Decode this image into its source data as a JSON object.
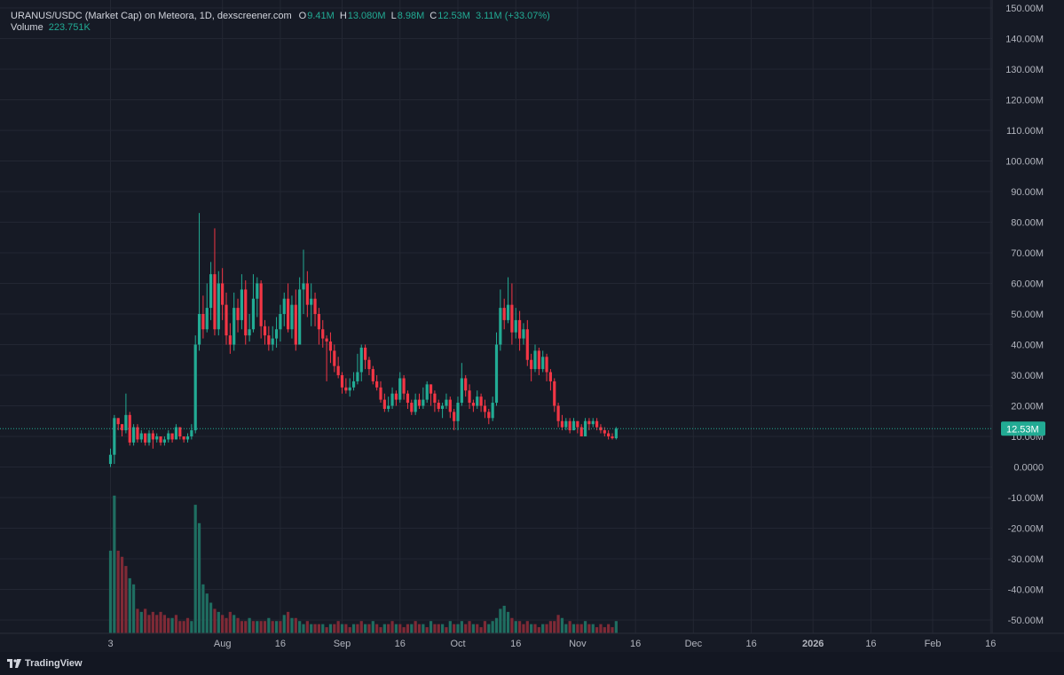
{
  "legend": {
    "title": "URANUS/USDC (Market Cap) on Meteora, 1D, dexscreener.com",
    "o_label": "O",
    "o_value": "9.41M",
    "h_label": "H",
    "h_value": "13.080M",
    "l_label": "L",
    "l_value": "8.98M",
    "c_label": "C",
    "c_value": "12.53M",
    "change": "3.11M (+33.07%)",
    "volume_label": "Volume",
    "volume_value": "223.751K"
  },
  "brand": {
    "name": "TradingView"
  },
  "colors": {
    "background": "#161a25",
    "grid": "#232733",
    "up": "#22ab94",
    "down": "#f23645",
    "up_volume": "#1f6e61",
    "down_volume": "#7f2a36",
    "text": "#b2b5be",
    "price_tag": "#22ab94"
  },
  "chart_data": {
    "type": "candlestick",
    "y_axis": {
      "ticks": [
        "150.00M",
        "140.00M",
        "130.00M",
        "120.00M",
        "110.00M",
        "100.00M",
        "90.00M",
        "80.00M",
        "70.00M",
        "60.00M",
        "50.00M",
        "40.00M",
        "30.00M",
        "20.00M",
        "10.00M",
        "0.0000",
        "-10.00M",
        "-20.00M",
        "-30.00M",
        "-40.00M",
        "-50.00M"
      ],
      "range": [
        -54,
        150
      ],
      "unit": "M"
    },
    "x_axis": {
      "ticks": [
        {
          "label": "3",
          "day": 0
        },
        {
          "label": "Aug",
          "day": 29
        },
        {
          "label": "16",
          "day": 44
        },
        {
          "label": "Sep",
          "day": 60
        },
        {
          "label": "16",
          "day": 75
        },
        {
          "label": "Oct",
          "day": 90
        },
        {
          "label": "16",
          "day": 105
        },
        {
          "label": "Nov",
          "day": 121
        },
        {
          "label": "16",
          "day": 136
        },
        {
          "label": "Dec",
          "day": 151
        },
        {
          "label": "16",
          "day": 166
        },
        {
          "label": "2026",
          "day": 182
        },
        {
          "label": "16",
          "day": 197
        },
        {
          "label": "Feb",
          "day": 213
        },
        {
          "label": "16",
          "day": 228
        }
      ]
    },
    "last_price_label": "12.53M",
    "last_price": 12.53,
    "candles": [
      [
        1,
        4,
        6,
        0
      ],
      [
        4,
        16,
        17,
        1
      ],
      [
        16,
        14,
        16,
        12
      ],
      [
        14,
        12,
        14,
        10
      ],
      [
        12,
        17,
        24,
        11
      ],
      [
        17,
        8,
        18,
        7
      ],
      [
        8,
        13,
        14,
        7
      ],
      [
        13,
        9,
        14,
        8
      ],
      [
        9,
        11,
        12,
        8
      ],
      [
        11,
        8,
        11,
        7
      ],
      [
        8,
        11,
        12,
        7
      ],
      [
        11,
        9,
        12,
        6
      ],
      [
        9,
        10,
        11,
        8
      ],
      [
        10,
        8,
        10,
        7
      ],
      [
        8,
        9,
        10,
        7
      ],
      [
        9,
        11,
        12,
        8
      ],
      [
        11,
        9,
        11,
        8
      ],
      [
        9,
        13,
        14,
        9
      ],
      [
        13,
        10,
        13,
        9
      ],
      [
        10,
        9,
        10,
        8
      ],
      [
        9,
        10,
        11,
        8
      ],
      [
        10,
        12,
        14,
        9
      ],
      [
        12,
        40,
        43,
        11
      ],
      [
        40,
        50,
        83,
        38
      ],
      [
        50,
        45,
        56,
        42
      ],
      [
        45,
        52,
        60,
        44
      ],
      [
        52,
        63,
        67,
        48
      ],
      [
        63,
        45,
        78,
        43
      ],
      [
        45,
        60,
        64,
        43
      ],
      [
        60,
        53,
        65,
        48
      ],
      [
        53,
        43,
        57,
        40
      ],
      [
        43,
        40,
        47,
        37
      ],
      [
        40,
        52,
        57,
        38
      ],
      [
        52,
        48,
        55,
        44
      ],
      [
        48,
        58,
        63,
        45
      ],
      [
        58,
        43,
        61,
        40
      ],
      [
        43,
        45,
        50,
        41
      ],
      [
        45,
        55,
        63,
        44
      ],
      [
        55,
        60,
        62,
        49
      ],
      [
        60,
        46,
        61,
        42
      ],
      [
        46,
        43,
        48,
        40
      ],
      [
        43,
        40,
        46,
        38
      ],
      [
        40,
        42,
        46,
        38
      ],
      [
        42,
        45,
        49,
        39
      ],
      [
        45,
        50,
        53,
        41
      ],
      [
        50,
        55,
        57,
        46
      ],
      [
        55,
        45,
        60,
        44
      ],
      [
        45,
        53,
        56,
        42
      ],
      [
        53,
        40,
        58,
        38
      ],
      [
        40,
        58,
        62,
        40
      ],
      [
        58,
        60,
        71,
        50
      ],
      [
        60,
        53,
        64,
        49
      ],
      [
        53,
        55,
        60,
        46
      ],
      [
        55,
        50,
        57,
        46
      ],
      [
        50,
        45,
        52,
        40
      ],
      [
        45,
        42,
        48,
        39
      ],
      [
        42,
        41,
        43,
        28
      ],
      [
        41,
        38,
        44,
        34
      ],
      [
        38,
        33,
        40,
        31
      ],
      [
        33,
        30,
        36,
        29
      ],
      [
        30,
        26,
        31,
        24
      ],
      [
        26,
        25,
        29,
        24
      ],
      [
        25,
        26,
        29,
        23
      ],
      [
        26,
        28,
        31,
        25
      ],
      [
        28,
        31,
        37,
        27
      ],
      [
        31,
        39,
        40,
        28
      ],
      [
        39,
        35,
        40,
        32
      ],
      [
        35,
        32,
        36,
        30
      ],
      [
        32,
        28,
        33,
        27
      ],
      [
        28,
        26,
        30,
        25
      ],
      [
        26,
        22,
        28,
        21
      ],
      [
        22,
        19,
        24,
        18
      ],
      [
        19,
        20,
        23,
        18
      ],
      [
        20,
        24,
        26,
        19
      ],
      [
        24,
        22,
        25,
        20
      ],
      [
        22,
        29,
        31,
        21
      ],
      [
        29,
        24,
        30,
        22
      ],
      [
        24,
        21,
        25,
        19
      ],
      [
        21,
        18,
        22,
        17
      ],
      [
        18,
        22,
        24,
        17
      ],
      [
        22,
        20,
        24,
        19
      ],
      [
        20,
        22,
        26,
        19
      ],
      [
        22,
        27,
        28,
        21
      ],
      [
        27,
        24,
        27,
        20
      ],
      [
        24,
        21,
        25,
        18
      ],
      [
        21,
        19,
        22,
        18
      ],
      [
        19,
        20,
        21,
        16
      ],
      [
        20,
        22,
        24,
        19
      ],
      [
        22,
        18,
        23,
        16
      ],
      [
        18,
        15,
        19,
        12
      ],
      [
        15,
        21,
        23,
        12
      ],
      [
        21,
        29,
        34,
        20
      ],
      [
        29,
        25,
        30,
        23
      ],
      [
        25,
        21,
        27,
        19
      ],
      [
        21,
        20,
        22,
        18
      ],
      [
        20,
        23,
        25,
        19
      ],
      [
        23,
        20,
        24,
        18
      ],
      [
        20,
        18,
        22,
        16
      ],
      [
        18,
        16,
        19,
        14
      ],
      [
        16,
        21,
        23,
        15
      ],
      [
        21,
        40,
        44,
        20
      ],
      [
        40,
        52,
        58,
        38
      ],
      [
        52,
        48,
        55,
        45
      ],
      [
        48,
        53,
        62,
        47
      ],
      [
        53,
        44,
        60,
        40
      ],
      [
        44,
        48,
        52,
        42
      ],
      [
        48,
        42,
        51,
        38
      ],
      [
        42,
        45,
        47,
        40
      ],
      [
        45,
        35,
        48,
        33
      ],
      [
        35,
        32,
        37,
        28
      ],
      [
        32,
        38,
        40,
        31
      ],
      [
        38,
        32,
        39,
        30
      ],
      [
        32,
        36,
        38,
        31
      ],
      [
        36,
        31,
        37,
        28
      ],
      [
        31,
        28,
        32,
        25
      ],
      [
        28,
        20,
        29,
        18
      ],
      [
        20,
        15,
        21,
        13
      ],
      [
        15,
        13,
        17,
        12
      ],
      [
        13,
        15,
        16,
        12
      ],
      [
        15,
        12,
        16,
        11
      ],
      [
        12,
        15,
        16,
        12
      ],
      [
        15,
        13,
        15,
        11
      ],
      [
        13,
        10,
        14,
        10
      ],
      [
        10,
        15,
        16,
        10
      ],
      [
        15,
        14,
        16,
        12
      ],
      [
        14,
        15,
        16,
        13
      ],
      [
        15,
        13,
        16,
        12
      ],
      [
        13,
        12,
        14,
        11
      ],
      [
        12,
        11,
        13,
        10
      ],
      [
        11,
        10,
        12,
        9
      ],
      [
        10,
        9.4,
        11,
        9
      ],
      [
        9.4,
        12.53,
        13.08,
        8.98
      ]
    ],
    "volume_scale_note": "volume bars in same price units (M) relative to -54 baseline",
    "volumes": [
      [
        27,
        1
      ],
      [
        45,
        1
      ],
      [
        27,
        0
      ],
      [
        25,
        0
      ],
      [
        22,
        0
      ],
      [
        18,
        1
      ],
      [
        16,
        1
      ],
      [
        8,
        0
      ],
      [
        7,
        1
      ],
      [
        8,
        0
      ],
      [
        6,
        0
      ],
      [
        7,
        0
      ],
      [
        6,
        0
      ],
      [
        7,
        0
      ],
      [
        6,
        0
      ],
      [
        5,
        0
      ],
      [
        5,
        1
      ],
      [
        6,
        0
      ],
      [
        4,
        0
      ],
      [
        4,
        0
      ],
      [
        5,
        0
      ],
      [
        4,
        1
      ],
      [
        42,
        1
      ],
      [
        36,
        1
      ],
      [
        16,
        1
      ],
      [
        13,
        1
      ],
      [
        10,
        1
      ],
      [
        8,
        0
      ],
      [
        7,
        1
      ],
      [
        6,
        0
      ],
      [
        5,
        0
      ],
      [
        7,
        0
      ],
      [
        6,
        1
      ],
      [
        5,
        0
      ],
      [
        4,
        0
      ],
      [
        4,
        0
      ],
      [
        5,
        1
      ],
      [
        4,
        0
      ],
      [
        4,
        1
      ],
      [
        4,
        0
      ],
      [
        4,
        0
      ],
      [
        5,
        1
      ],
      [
        4,
        0
      ],
      [
        4,
        1
      ],
      [
        4,
        0
      ],
      [
        6,
        1
      ],
      [
        7,
        0
      ],
      [
        5,
        1
      ],
      [
        5,
        0
      ],
      [
        4,
        1
      ],
      [
        3,
        1
      ],
      [
        4,
        0
      ],
      [
        3,
        1
      ],
      [
        3,
        0
      ],
      [
        3,
        0
      ],
      [
        3,
        1
      ],
      [
        2,
        0
      ],
      [
        3,
        1
      ],
      [
        3,
        0
      ],
      [
        4,
        0
      ],
      [
        3,
        1
      ],
      [
        3,
        0
      ],
      [
        2,
        0
      ],
      [
        3,
        1
      ],
      [
        3,
        0
      ],
      [
        4,
        0
      ],
      [
        3,
        1
      ],
      [
        3,
        0
      ],
      [
        4,
        1
      ],
      [
        3,
        0
      ],
      [
        2,
        0
      ],
      [
        3,
        1
      ],
      [
        3,
        0
      ],
      [
        4,
        0
      ],
      [
        3,
        1
      ],
      [
        3,
        0
      ],
      [
        2,
        0
      ],
      [
        3,
        0
      ],
      [
        3,
        1
      ],
      [
        4,
        0
      ],
      [
        3,
        0
      ],
      [
        3,
        1
      ],
      [
        2,
        0
      ],
      [
        4,
        1
      ],
      [
        3,
        0
      ],
      [
        3,
        0
      ],
      [
        3,
        1
      ],
      [
        2,
        0
      ],
      [
        4,
        1
      ],
      [
        3,
        0
      ],
      [
        3,
        1
      ],
      [
        4,
        1
      ],
      [
        3,
        0
      ],
      [
        4,
        0
      ],
      [
        3,
        1
      ],
      [
        3,
        0
      ],
      [
        2,
        0
      ],
      [
        4,
        0
      ],
      [
        3,
        1
      ],
      [
        4,
        1
      ],
      [
        5,
        1
      ],
      [
        8,
        1
      ],
      [
        9,
        1
      ],
      [
        7,
        1
      ],
      [
        5,
        0
      ],
      [
        4,
        1
      ],
      [
        4,
        0
      ],
      [
        3,
        0
      ],
      [
        4,
        0
      ],
      [
        3,
        1
      ],
      [
        3,
        0
      ],
      [
        2,
        0
      ],
      [
        3,
        1
      ],
      [
        3,
        0
      ],
      [
        4,
        0
      ],
      [
        4,
        0
      ],
      [
        6,
        0
      ],
      [
        5,
        1
      ],
      [
        3,
        1
      ],
      [
        4,
        0
      ],
      [
        3,
        1
      ],
      [
        3,
        0
      ],
      [
        3,
        0
      ],
      [
        4,
        1
      ],
      [
        3,
        0
      ],
      [
        3,
        1
      ],
      [
        2,
        0
      ],
      [
        3,
        0
      ],
      [
        2,
        0
      ],
      [
        3,
        0
      ],
      [
        2,
        0
      ],
      [
        4,
        1
      ]
    ]
  }
}
